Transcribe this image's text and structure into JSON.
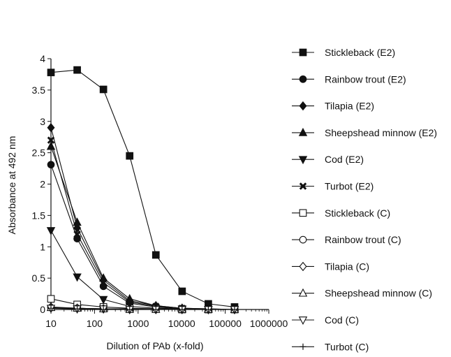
{
  "chart_data": {
    "type": "line",
    "xlabel": "Dilution of PAb (x-fold)",
    "ylabel": "Absorbance at  492 nm",
    "xscale": "log",
    "xlim": [
      10,
      1000000
    ],
    "ylim": [
      0,
      4
    ],
    "x_ticks": [
      10,
      100,
      1000,
      10000,
      100000,
      1000000
    ],
    "x_tick_labels": [
      "10",
      "100",
      "1000",
      "10000",
      "100000",
      "1000000"
    ],
    "y_ticks": [
      0,
      0.5,
      1,
      1.5,
      2,
      2.5,
      3,
      3.5,
      4
    ],
    "y_tick_labels": [
      "0",
      "0.5",
      "1",
      "1.5",
      "2",
      "2.5",
      "3",
      "3.5",
      "4"
    ],
    "legend_position": "right",
    "grid": false,
    "x": [
      10,
      40,
      160,
      640,
      2560,
      10240,
      40960,
      163840
    ],
    "series": [
      {
        "name": "Stickleback (E2)",
        "marker": "square-filled",
        "values": [
          3.78,
          3.82,
          3.51,
          2.45,
          0.87,
          0.29,
          0.09,
          0.04
        ]
      },
      {
        "name": "Rainbow trout (E2)",
        "marker": "circle-filled",
        "values": [
          2.31,
          1.13,
          0.37,
          0.1,
          0.04,
          0.01,
          0.0,
          0.0
        ]
      },
      {
        "name": "Tilapia (E2)",
        "marker": "diamond-filled",
        "values": [
          2.9,
          1.3,
          0.47,
          0.14,
          0.06,
          0.02,
          0.01,
          0.0
        ]
      },
      {
        "name": "Sheepshead minnow (E2)",
        "marker": "triangle-up-filled",
        "values": [
          2.6,
          1.39,
          0.5,
          0.17,
          0.06,
          0.02,
          0.01,
          0.0
        ]
      },
      {
        "name": "Cod (E2)",
        "marker": "triangle-down-filled",
        "values": [
          1.26,
          0.52,
          0.16,
          0.05,
          0.02,
          0.01,
          0.0,
          0.0
        ]
      },
      {
        "name": "Turbot (E2)",
        "marker": "x-filled",
        "values": [
          2.7,
          1.2,
          0.43,
          0.12,
          0.05,
          0.02,
          0.0,
          0.0
        ]
      },
      {
        "name": "Stickleback (C)",
        "marker": "square-open",
        "values": [
          0.17,
          0.08,
          0.04,
          0.02,
          0.01,
          0.0,
          0.0,
          0.0
        ]
      },
      {
        "name": "Rainbow trout (C)",
        "marker": "circle-open",
        "values": [
          0.03,
          0.02,
          0.01,
          0.01,
          0.0,
          0.0,
          0.0,
          0.0
        ]
      },
      {
        "name": "Tilapia (C)",
        "marker": "diamond-open",
        "values": [
          0.04,
          0.02,
          0.01,
          0.0,
          0.0,
          0.0,
          0.0,
          0.0
        ]
      },
      {
        "name": "Sheepshead minnow (C)",
        "marker": "triangle-up-open",
        "values": [
          0.03,
          0.02,
          0.01,
          0.0,
          0.0,
          0.0,
          0.0,
          0.0
        ]
      },
      {
        "name": "Cod (C)",
        "marker": "triangle-down-open",
        "values": [
          0.02,
          0.01,
          0.01,
          0.0,
          0.0,
          0.0,
          0.0,
          0.0
        ]
      },
      {
        "name": "Turbot (C)",
        "marker": "cross-open",
        "values": [
          0.02,
          0.01,
          0.0,
          0.0,
          0.0,
          0.0,
          0.0,
          0.0
        ]
      }
    ]
  }
}
